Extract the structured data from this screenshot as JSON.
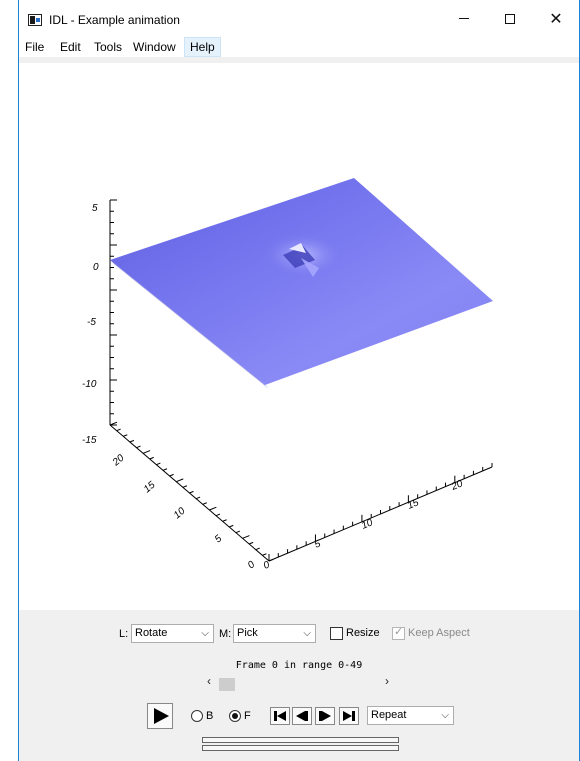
{
  "window": {
    "title": "IDL - Example animation"
  },
  "menu": [
    "File",
    "Edit",
    "Tools",
    "Window",
    "Help"
  ],
  "plot": {
    "z_ticks": [
      "5",
      "0",
      "-5",
      "-10",
      "-15"
    ],
    "y_ticks": [
      "20",
      "15",
      "10",
      "5",
      "0"
    ],
    "x_ticks": [
      "0",
      "5",
      "10",
      "15",
      "20"
    ],
    "surface_color": "#7070f0"
  },
  "controls": {
    "left_label": "L:",
    "left_mode": "Rotate",
    "middle_label": "M:",
    "middle_mode": "Pick",
    "resize_label": "Resize",
    "resize_checked": false,
    "keep_aspect_label": "Keep Aspect",
    "keep_aspect_checked": true,
    "frame_status": "Frame 0 in range 0-49",
    "slider_position": 0,
    "radio_b_label": "B",
    "radio_f_label": "F",
    "direction": "F",
    "loop_mode": "Repeat"
  }
}
